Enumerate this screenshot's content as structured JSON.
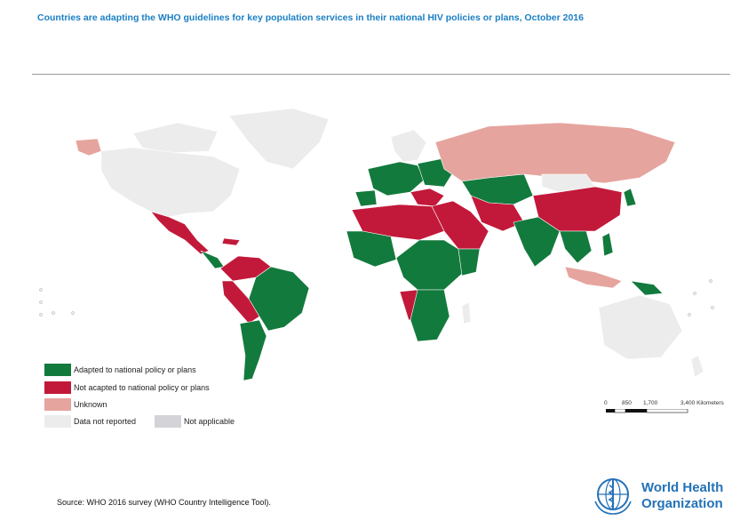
{
  "title": "Countries are adapting the WHO guidelines for key population services in their national HIV policies or plans, October 2016",
  "colors": {
    "adapted": "#127a3d",
    "not_adapted": "#c2193a",
    "unknown": "#e6a49e",
    "not_reported": "#ececec",
    "not_applicable": "#d4d4d8",
    "ocean": "#ffffff",
    "who_blue": "#2472b8"
  },
  "legend": {
    "adapted": "Adapted to national policy or plans",
    "not_adapted": "Not acapted to national policy or plans",
    "unknown": "Unknown",
    "not_reported": "Data not reported",
    "not_applicable": "Not applicable"
  },
  "scale_bar": {
    "ticks": [
      "0",
      "850",
      "1,700",
      "3,400 Kilometers"
    ]
  },
  "source": "Source: WHO 2016 survey (WHO Country Intelligence Tool).",
  "logo": {
    "line1": "World Health",
    "line2": "Organization"
  }
}
